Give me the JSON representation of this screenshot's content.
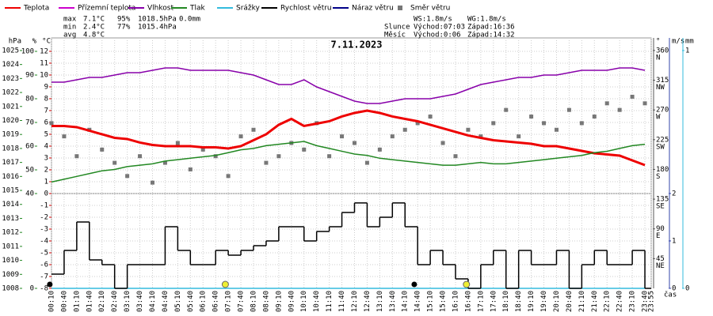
{
  "chart_data": {
    "type": "line",
    "title": "7.11.2023",
    "x_label": "čas",
    "xlim": [
      10,
      1435
    ],
    "xticks": [
      {
        "value": 10,
        "label": "00:10"
      },
      {
        "value": 40,
        "label": "00:40"
      },
      {
        "value": 70,
        "label": "01:10"
      },
      {
        "value": 100,
        "label": "01:40"
      },
      {
        "value": 130,
        "label": "02:10"
      },
      {
        "value": 160,
        "label": "02:40"
      },
      {
        "value": 190,
        "label": "03:10"
      },
      {
        "value": 220,
        "label": "03:40"
      },
      {
        "value": 250,
        "label": "04:10"
      },
      {
        "value": 280,
        "label": "04:40"
      },
      {
        "value": 310,
        "label": "05:10"
      },
      {
        "value": 340,
        "label": "05:40"
      },
      {
        "value": 370,
        "label": "06:10"
      },
      {
        "value": 400,
        "label": "06:40"
      },
      {
        "value": 430,
        "label": "07:10"
      },
      {
        "value": 460,
        "label": "07:40"
      },
      {
        "value": 490,
        "label": "08:10"
      },
      {
        "value": 520,
        "label": "08:40"
      },
      {
        "value": 550,
        "label": "09:10"
      },
      {
        "value": 580,
        "label": "09:40"
      },
      {
        "value": 610,
        "label": "10:10"
      },
      {
        "value": 640,
        "label": "10:40"
      },
      {
        "value": 670,
        "label": "11:10"
      },
      {
        "value": 700,
        "label": "11:40"
      },
      {
        "value": 730,
        "label": "12:10"
      },
      {
        "value": 760,
        "label": "12:40"
      },
      {
        "value": 790,
        "label": "13:10"
      },
      {
        "value": 820,
        "label": "13:40"
      },
      {
        "value": 850,
        "label": "14:10"
      },
      {
        "value": 880,
        "label": "14:40"
      },
      {
        "value": 910,
        "label": "15:10"
      },
      {
        "value": 940,
        "label": "15:40"
      },
      {
        "value": 970,
        "label": "16:10"
      },
      {
        "value": 1000,
        "label": "16:40"
      },
      {
        "value": 1030,
        "label": "17:10"
      },
      {
        "value": 1060,
        "label": "17:40"
      },
      {
        "value": 1090,
        "label": "18:10"
      },
      {
        "value": 1120,
        "label": "18:40"
      },
      {
        "value": 1150,
        "label": "19:10"
      },
      {
        "value": 1180,
        "label": "19:40"
      },
      {
        "value": 1210,
        "label": "20:10"
      },
      {
        "value": 1240,
        "label": "20:40"
      },
      {
        "value": 1270,
        "label": "21:10"
      },
      {
        "value": 1300,
        "label": "21:40"
      },
      {
        "value": 1330,
        "label": "22:10"
      },
      {
        "value": 1360,
        "label": "22:40"
      },
      {
        "value": 1390,
        "label": "23:10"
      },
      {
        "value": 1420,
        "label": "23:40"
      },
      {
        "value": 1435,
        "label": "23:55"
      }
    ],
    "x": [
      10,
      40,
      70,
      100,
      130,
      160,
      190,
      220,
      250,
      280,
      310,
      340,
      370,
      400,
      430,
      460,
      490,
      520,
      550,
      580,
      610,
      640,
      670,
      700,
      730,
      760,
      790,
      820,
      850,
      880,
      910,
      940,
      970,
      1000,
      1030,
      1060,
      1090,
      1120,
      1150,
      1180,
      1210,
      1240,
      1270,
      1300,
      1330,
      1360,
      1390,
      1420
    ],
    "axes": {
      "pressure": {
        "label": "hPa",
        "color": "#228822",
        "side": "left",
        "lim": [
          1008,
          1025.9
        ],
        "ticks": [
          1008,
          1009,
          1010,
          1011,
          1012,
          1013,
          1014,
          1015,
          1016,
          1017,
          1018,
          1019,
          1020,
          1021,
          1022,
          1023,
          1024,
          1025
        ]
      },
      "humidity": {
        "label": "%",
        "color": "#228822",
        "side": "left",
        "lim": [
          0,
          105.67
        ],
        "ticks": [
          0,
          40,
          50,
          60,
          70,
          80,
          90,
          100
        ]
      },
      "temp": {
        "label": "°C",
        "color": "#dd0000",
        "side": "left",
        "lim": [
          -8,
          13.13
        ],
        "ticks": [
          -8,
          -7,
          -6,
          -5,
          -4,
          -3,
          -2,
          -1,
          0,
          1,
          2,
          3,
          4,
          5,
          6,
          7,
          8,
          9,
          10,
          11,
          12
        ]
      },
      "direction": {
        "label": "°",
        "color": "#555555",
        "side": "right",
        "lim": [
          0,
          379
        ],
        "ticks": [
          45,
          90,
          135,
          180,
          225,
          270,
          315,
          360
        ],
        "compass": [
          "NE",
          "E",
          "SE",
          "S",
          "SW",
          "W",
          "NW",
          "N"
        ]
      },
      "wind": {
        "label": "m/s",
        "color": "#3344aa",
        "side": "right",
        "lim": [
          0,
          5.28
        ],
        "ticks": [
          0,
          1,
          2
        ]
      },
      "rain": {
        "label": "mm",
        "color": "#33bbdd",
        "side": "right",
        "lim": [
          0,
          1.053
        ],
        "ticks": [
          0,
          1
        ]
      }
    },
    "grid": true,
    "series": [
      {
        "name": "Teplota",
        "color": "#ee0000",
        "axis": "temp",
        "style": "line",
        "values": [
          5.7,
          5.7,
          5.6,
          5.3,
          5.0,
          4.7,
          4.6,
          4.3,
          4.1,
          4.0,
          4.0,
          4.0,
          3.9,
          3.9,
          3.8,
          4.0,
          4.5,
          5.0,
          5.8,
          6.3,
          5.7,
          5.9,
          6.1,
          6.5,
          6.8,
          7.0,
          6.8,
          6.5,
          6.3,
          6.1,
          5.8,
          5.5,
          5.2,
          4.9,
          4.7,
          4.5,
          4.4,
          4.3,
          4.2,
          4.0,
          4.0,
          3.8,
          3.6,
          3.4,
          3.3,
          3.2,
          2.8,
          2.4
        ]
      },
      {
        "name": "Přízemní teplota",
        "color": "#cc00cc",
        "axis": "temp",
        "style": "line"
      },
      {
        "name": "Vlhkost",
        "color": "#8800aa",
        "axis": "humidity",
        "style": "line",
        "values": [
          87,
          87,
          88,
          89,
          89,
          90,
          91,
          91,
          92,
          93,
          93,
          92,
          92,
          92,
          92,
          91,
          90,
          88,
          86,
          86,
          88,
          85,
          83,
          81,
          79,
          78,
          78,
          79,
          80,
          80,
          80,
          81,
          82,
          84,
          86,
          87,
          88,
          89,
          89,
          90,
          90,
          91,
          92,
          92,
          92,
          93,
          93,
          92
        ]
      },
      {
        "name": "Tlak",
        "color": "#228822",
        "axis": "pressure",
        "style": "line",
        "values": [
          1015.6,
          1015.8,
          1016.0,
          1016.2,
          1016.4,
          1016.5,
          1016.7,
          1016.8,
          1016.9,
          1017.1,
          1017.2,
          1017.3,
          1017.4,
          1017.5,
          1017.7,
          1017.9,
          1018.0,
          1018.2,
          1018.3,
          1018.4,
          1018.5,
          1018.2,
          1018.0,
          1017.8,
          1017.6,
          1017.5,
          1017.3,
          1017.2,
          1017.1,
          1017.0,
          1016.9,
          1016.8,
          1016.8,
          1016.9,
          1017.0,
          1016.9,
          1016.9,
          1017.0,
          1017.1,
          1017.2,
          1017.3,
          1017.4,
          1017.5,
          1017.7,
          1017.8,
          1018.0,
          1018.2,
          1018.3
        ]
      },
      {
        "name": "Srážky",
        "color": "#33bbdd",
        "axis": "rain",
        "style": "line",
        "values": [
          0,
          0,
          0,
          0,
          0,
          0,
          0,
          0,
          0,
          0,
          0,
          0,
          0,
          0,
          0,
          0,
          0,
          0,
          0,
          0,
          0,
          0,
          0,
          0,
          0,
          0,
          0,
          0,
          0,
          0,
          0,
          0,
          0,
          0,
          0,
          0,
          0,
          0,
          0,
          0,
          0,
          0,
          0,
          0,
          0,
          0,
          0,
          0
        ]
      },
      {
        "name": "Rychlost větru",
        "color": "#000000",
        "axis": "wind",
        "style": "step",
        "values": [
          0.3,
          0.8,
          1.4,
          0.6,
          0.5,
          0.0,
          0.5,
          0.5,
          0.5,
          1.3,
          0.8,
          0.5,
          0.5,
          0.8,
          0.7,
          0.8,
          0.9,
          1.0,
          1.3,
          1.3,
          1.0,
          1.2,
          1.3,
          1.6,
          1.8,
          1.3,
          1.5,
          1.8,
          1.3,
          0.5,
          0.8,
          0.5,
          0.2,
          0.0,
          0.5,
          0.8,
          0.0,
          0.8,
          0.5,
          0.5,
          0.8,
          0.0,
          0.5,
          0.8,
          0.5,
          0.5,
          0.8,
          0.0
        ]
      },
      {
        "name": "Náraz větru",
        "color": "#000088",
        "axis": "wind",
        "style": "line"
      },
      {
        "name": "Směr větru",
        "color": "#777777",
        "axis": "direction",
        "style": "scatter",
        "values": [
          250,
          230,
          200,
          240,
          210,
          190,
          170,
          200,
          160,
          190,
          220,
          180,
          210,
          200,
          170,
          230,
          240,
          190,
          200,
          220,
          210,
          250,
          200,
          230,
          220,
          190,
          210,
          230,
          240,
          250,
          260,
          220,
          200,
          240,
          230,
          250,
          270,
          230,
          260,
          250,
          240,
          270,
          250,
          260,
          280,
          270,
          290,
          280
        ]
      }
    ],
    "sun_x": [
      423,
      996
    ],
    "moon_x": [
      6,
      872
    ],
    "stats": [
      [
        "max",
        "7.1°C",
        "95%",
        "1018.5hPa",
        "0.0mm"
      ],
      [
        "min",
        "2.4°C",
        "77%",
        "1015.4hPa"
      ],
      [
        "avg",
        "4.8°C"
      ]
    ],
    "info": [
      [
        "WS:1.8m/s",
        "WG:1.8m/s"
      ],
      [
        "Slunce",
        "Východ:07:03",
        "Západ:16:36"
      ],
      [
        "Měsíc",
        "Východ:0:06",
        "Západ:14:32"
      ]
    ]
  }
}
